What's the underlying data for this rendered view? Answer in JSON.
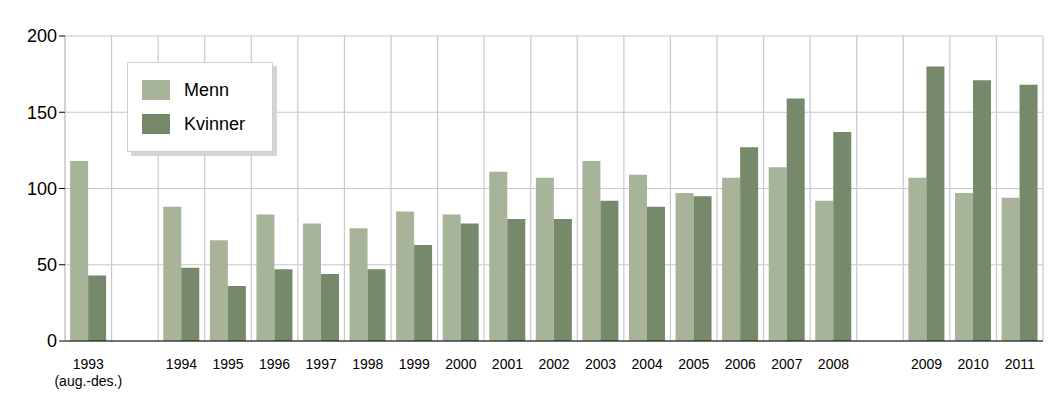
{
  "chart_data": {
    "type": "bar",
    "categories": [
      "1993 (aug.-des.)",
      null,
      "1994",
      "1995",
      "1996",
      "1997",
      "1998",
      "1999",
      "2000",
      "2001",
      "2002",
      "2003",
      "2004",
      "2005",
      "2006",
      "2007",
      "2008",
      null,
      "2009",
      "2010",
      "2011"
    ],
    "series": [
      {
        "name": "Menn",
        "color": "#a7b49a",
        "values": [
          118,
          null,
          88,
          66,
          83,
          77,
          74,
          85,
          83,
          111,
          107,
          118,
          109,
          97,
          107,
          114,
          92,
          null,
          107,
          97,
          94
        ]
      },
      {
        "name": "Kvinner",
        "color": "#76896a",
        "values": [
          43,
          null,
          48,
          36,
          47,
          44,
          47,
          63,
          77,
          80,
          80,
          92,
          88,
          95,
          127,
          159,
          137,
          null,
          180,
          171,
          168
        ]
      }
    ],
    "ylim": [
      0,
      200
    ],
    "yticks": [
      0,
      50,
      100,
      150,
      200
    ],
    "grid": true,
    "legend": "upper left"
  }
}
